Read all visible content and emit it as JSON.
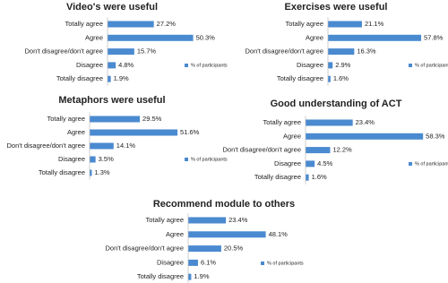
{
  "chart_data": [
    {
      "type": "bar",
      "orientation": "horizontal",
      "title": "Video's were useful",
      "categories": [
        "Totally agree",
        "Agree",
        "Don't disagree/don't agree",
        "Disagree",
        "Totally disagree"
      ],
      "series": [
        {
          "name": "% of participants",
          "color": "#4a8ad0",
          "values": [
            27.2,
            50.3,
            15.7,
            4.8,
            1.9
          ],
          "value_labels": [
            "27.2%",
            "50.3%",
            "15.7%",
            "4.8%",
            "1.9%"
          ]
        }
      ]
    },
    {
      "type": "bar",
      "orientation": "horizontal",
      "title": "Exercises were useful",
      "categories": [
        "Totally agree",
        "Agree",
        "Don't disagree/don't agree",
        "Disagree",
        "Totally disagree"
      ],
      "series": [
        {
          "name": "% of participants",
          "color": "#4a8ad0",
          "values": [
            21.1,
            57.8,
            16.3,
            2.9,
            1.6
          ],
          "value_labels": [
            "21.1%",
            "57.8%",
            "16.3%",
            "2.9%",
            "1.6%"
          ]
        }
      ]
    },
    {
      "type": "bar",
      "orientation": "horizontal",
      "title": "Metaphors were useful",
      "categories": [
        "Totally agree",
        "Agree",
        "Don't disagree/don't agree",
        "Disagree",
        "Totally disagree"
      ],
      "series": [
        {
          "name": "% of participants",
          "color": "#4a8ad0",
          "values": [
            29.5,
            51.6,
            14.1,
            3.5,
            1.3
          ],
          "value_labels": [
            "29.5%",
            "51.6%",
            "14.1%",
            "3.5%",
            "1.3%"
          ]
        }
      ]
    },
    {
      "type": "bar",
      "orientation": "horizontal",
      "title": "Good understanding of ACT",
      "categories": [
        "Totally agree",
        "Agree",
        "Don't disagree/don't agree",
        "Disagree",
        "Totally disagree"
      ],
      "series": [
        {
          "name": "% of participants",
          "color": "#4a8ad0",
          "values": [
            23.4,
            58.3,
            12.2,
            4.5,
            1.6
          ],
          "value_labels": [
            "23.4%",
            "58.3%",
            "12.2%",
            "4.5%",
            "1.6%"
          ]
        }
      ]
    },
    {
      "type": "bar",
      "orientation": "horizontal",
      "title": "Recommend module to others",
      "categories": [
        "Totally agree",
        "Agree",
        "Don't disagree/don't agree",
        "Disagree",
        "Totally disagree"
      ],
      "series": [
        {
          "name": "% of participants",
          "color": "#4a8ad0",
          "values": [
            23.4,
            48.1,
            20.5,
            6.1,
            1.9
          ],
          "value_labels": [
            "23.4%",
            "48.1%",
            "20.5%",
            "6.1%",
            "1.9%"
          ]
        }
      ]
    }
  ]
}
